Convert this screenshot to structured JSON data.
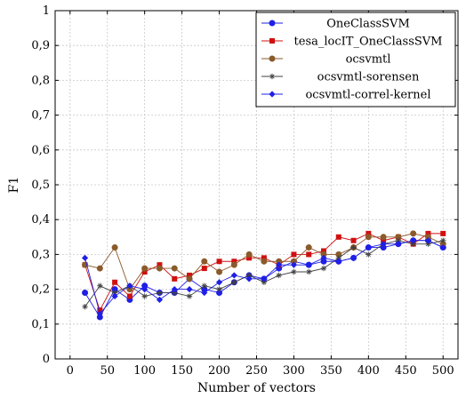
{
  "chart_data": {
    "type": "line",
    "title": "",
    "xlabel": "Number of vectors",
    "ylabel": "F1",
    "xlim": [
      -20,
      520
    ],
    "ylim": [
      0,
      1
    ],
    "xticks": [
      0,
      50,
      100,
      150,
      200,
      250,
      300,
      350,
      400,
      450,
      500
    ],
    "xtick_labels": [
      "0",
      "50",
      "100",
      "150",
      "200",
      "250",
      "300",
      "350",
      "400",
      "450",
      "500"
    ],
    "yticks": [
      0,
      0.1,
      0.2,
      0.3,
      0.4,
      0.5,
      0.6,
      0.7,
      0.8,
      0.9,
      1
    ],
    "ytick_labels": [
      "0",
      "0,1",
      "0,2",
      "0,3",
      "0,4",
      "0,5",
      "0,6",
      "0,7",
      "0,8",
      "0,9",
      "1"
    ],
    "grid": true,
    "legend_position": "top-right",
    "x": [
      20,
      40,
      60,
      80,
      100,
      120,
      140,
      160,
      180,
      200,
      220,
      240,
      260,
      280,
      300,
      320,
      340,
      360,
      380,
      400,
      420,
      440,
      460,
      480,
      500
    ],
    "series": [
      {
        "name": "OneClassSVM",
        "color": "#1f1fe6",
        "marker": "circle",
        "values": [
          0.19,
          0.12,
          0.2,
          0.17,
          0.21,
          0.19,
          0.19,
          0.23,
          0.2,
          0.19,
          0.22,
          0.24,
          0.23,
          0.26,
          0.28,
          0.27,
          0.28,
          0.28,
          0.29,
          0.32,
          0.32,
          0.33,
          0.34,
          0.34,
          0.32
        ]
      },
      {
        "name": "tesa_locIT_OneClassSVM",
        "color": "#d01010",
        "marker": "square",
        "values": [
          0.27,
          0.14,
          0.22,
          0.18,
          0.25,
          0.27,
          0.23,
          0.24,
          0.26,
          0.28,
          0.28,
          0.29,
          0.29,
          0.27,
          0.3,
          0.3,
          0.31,
          0.35,
          0.34,
          0.36,
          0.34,
          0.35,
          0.33,
          0.36,
          0.36
        ]
      },
      {
        "name": "ocsvmtl",
        "color": "#8b5a2b",
        "marker": "circle",
        "values": [
          0.27,
          0.26,
          0.32,
          0.2,
          0.26,
          0.26,
          0.26,
          0.23,
          0.28,
          0.25,
          0.27,
          0.3,
          0.28,
          0.28,
          0.28,
          0.32,
          0.3,
          0.3,
          0.32,
          0.35,
          0.35,
          0.35,
          0.36,
          0.35,
          0.33
        ]
      },
      {
        "name": "ocsvmtl-sorensen",
        "color": "#404040",
        "marker": "star",
        "values": [
          0.15,
          0.21,
          0.19,
          0.21,
          0.18,
          0.19,
          0.19,
          0.18,
          0.21,
          0.2,
          0.22,
          0.24,
          0.22,
          0.24,
          0.25,
          0.25,
          0.26,
          0.29,
          0.32,
          0.3,
          0.33,
          0.34,
          0.33,
          0.33,
          0.34
        ]
      },
      {
        "name": "ocsvmtl-correl-kernel",
        "color": "#1f1fe6",
        "marker": "diamond",
        "values": [
          0.29,
          0.13,
          0.18,
          0.21,
          0.2,
          0.17,
          0.2,
          0.2,
          0.19,
          0.22,
          0.24,
          0.23,
          0.23,
          0.27,
          0.27,
          0.27,
          0.29,
          0.28,
          0.29,
          0.32,
          0.33,
          0.33,
          0.34,
          0.34,
          0.32
        ]
      }
    ]
  }
}
